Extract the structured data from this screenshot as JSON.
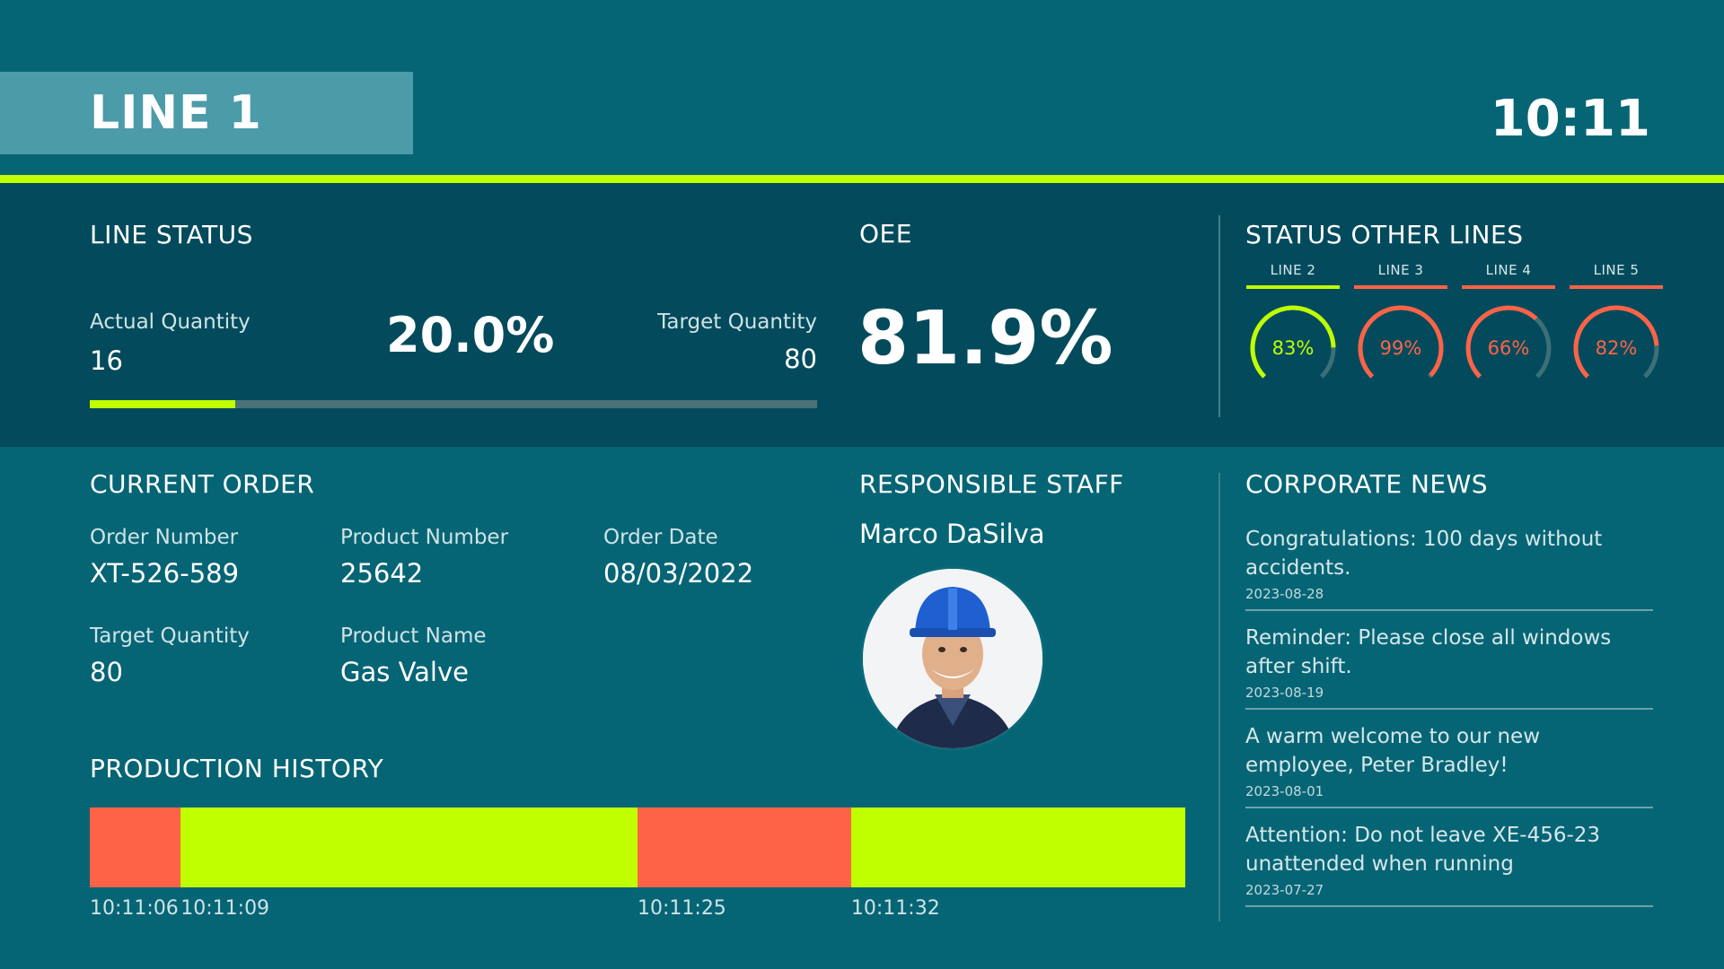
{
  "header": {
    "line_title": "LINE 1",
    "clock": "10:11"
  },
  "line_status": {
    "title": "LINE STATUS",
    "actual_label": "Actual Quantity",
    "actual_value": "16",
    "percent": "20.0%",
    "target_label": "Target Quantity",
    "target_value": "80",
    "progress_fraction": 0.2
  },
  "oee": {
    "title": "OEE",
    "value": "81.9%"
  },
  "other_lines": {
    "title": "STATUS OTHER LINES",
    "lines": [
      {
        "label": "LINE 2",
        "value_text": "83%",
        "fraction": 0.83,
        "color": "#c0ff00"
      },
      {
        "label": "LINE 3",
        "value_text": "99%",
        "fraction": 0.99,
        "color": "#ff6347"
      },
      {
        "label": "LINE 4",
        "value_text": "66%",
        "fraction": 0.66,
        "color": "#ff6347"
      },
      {
        "label": "LINE 5",
        "value_text": "82%",
        "fraction": 0.82,
        "color": "#ff6347"
      }
    ]
  },
  "current_order": {
    "title": "CURRENT ORDER",
    "order_number_label": "Order Number",
    "order_number": "XT-526-589",
    "product_number_label": "Product Number",
    "product_number": "25642",
    "order_date_label": "Order Date",
    "order_date": "08/03/2022",
    "target_quantity_label": "Target Quantity",
    "target_quantity": "80",
    "product_name_label": "Product Name",
    "product_name": "Gas Valve"
  },
  "staff": {
    "title": "RESPONSIBLE STAFF",
    "name": "Marco DaSilva"
  },
  "production_history": {
    "title": "PRODUCTION HISTORY",
    "segments": [
      {
        "state": "stopped",
        "color": "#ff6347",
        "fraction": 0.083
      },
      {
        "state": "running",
        "color": "#c0ff00",
        "fraction": 0.417
      },
      {
        "state": "stopped",
        "color": "#ff6347",
        "fraction": 0.195
      },
      {
        "state": "running",
        "color": "#c0ff00",
        "fraction": 0.305
      }
    ],
    "times": [
      "10:11:06",
      "10:11:09",
      "10:11:25",
      "10:11:32"
    ]
  },
  "news": {
    "title": "CORPORATE NEWS",
    "items": [
      {
        "text": "Congratulations: 100 days without accidents.",
        "date": "2023-08-28"
      },
      {
        "text": "Reminder: Please close all windows after shift.",
        "date": "2023-08-19"
      },
      {
        "text": "A warm welcome to our new employee, Peter Bradley!",
        "date": "2023-08-01"
      },
      {
        "text": "Attention: Do not leave XE-456-23 unattended when running",
        "date": "2023-07-27"
      }
    ]
  },
  "colors": {
    "accent_green": "#c0ff00",
    "alert_red": "#ff6347",
    "background": "#066575",
    "band": "#034b5c"
  }
}
